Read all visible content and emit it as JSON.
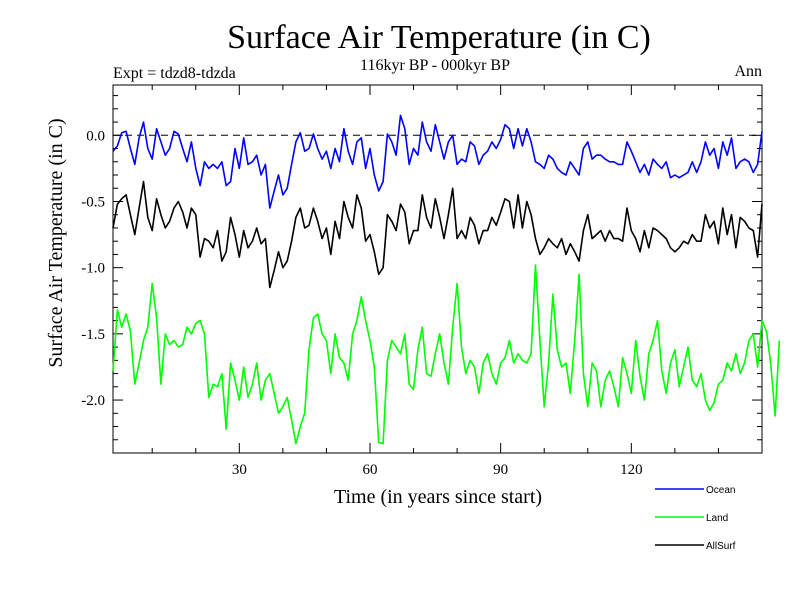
{
  "chart_data": {
    "type": "line",
    "title": "Surface Air Temperature (in C)",
    "subtitle": "116kyr BP - 000kyr BP",
    "left_note": "Expt = tdzd8-tdzda",
    "right_note": "Ann",
    "xlabel": "Time (in years since start)",
    "ylabel": "Surface Air Temperature (in C)",
    "xlim": [
      1,
      150
    ],
    "ylim": [
      -2.4,
      0.38
    ],
    "xticks": [
      30,
      60,
      90,
      120
    ],
    "xtick_labels": [
      "30",
      "60",
      "90",
      "120"
    ],
    "yticks": [
      0.0,
      -0.5,
      -1.0,
      -1.5,
      -2.0
    ],
    "ytick_labels": [
      "0.0",
      "-0.5",
      "-1.0",
      "-1.5",
      "-2.0"
    ],
    "reference_line": 0.0,
    "series": [
      {
        "name": "Ocean",
        "color": "#0000ff",
        "values": [
          -0.12,
          -0.08,
          0.02,
          0.03,
          -0.1,
          -0.22,
          -0.02,
          0.1,
          -0.1,
          -0.18,
          0.05,
          -0.05,
          -0.15,
          -0.1,
          0.03,
          0.01,
          -0.1,
          -0.2,
          -0.05,
          -0.25,
          -0.38,
          -0.2,
          -0.25,
          -0.22,
          -0.25,
          -0.2,
          -0.38,
          -0.35,
          -0.1,
          -0.25,
          -0.02,
          -0.22,
          -0.2,
          -0.15,
          -0.3,
          -0.22,
          -0.55,
          -0.42,
          -0.3,
          -0.45,
          -0.4,
          -0.22,
          -0.05,
          0.02,
          -0.12,
          -0.1,
          0.01,
          -0.1,
          -0.18,
          -0.12,
          -0.25,
          -0.1,
          -0.2,
          0.05,
          -0.12,
          -0.22,
          -0.05,
          -0.02,
          -0.25,
          -0.1,
          -0.3,
          -0.42,
          -0.35,
          0.01,
          -0.05,
          -0.15,
          0.15,
          0.05,
          -0.22,
          -0.1,
          -0.15,
          0.1,
          -0.05,
          -0.12,
          0.08,
          -0.05,
          -0.18,
          -0.05,
          0.0,
          -0.22,
          -0.18,
          -0.2,
          -0.05,
          -0.08,
          -0.22,
          -0.15,
          -0.12,
          -0.05,
          -0.1,
          -0.03,
          0.08,
          0.05,
          -0.1,
          0.05,
          -0.08,
          0.05,
          -0.05,
          -0.2,
          -0.22,
          -0.25,
          -0.15,
          -0.18,
          -0.25,
          -0.28,
          -0.3,
          -0.2,
          -0.25,
          -0.3,
          -0.1,
          -0.05,
          -0.18,
          -0.15,
          -0.15,
          -0.18,
          -0.2,
          -0.2,
          -0.22,
          -0.22,
          -0.05,
          -0.12,
          -0.2,
          -0.28,
          -0.22,
          -0.3,
          -0.18,
          -0.22,
          -0.25,
          -0.2,
          -0.32,
          -0.3,
          -0.32,
          -0.3,
          -0.28,
          -0.2,
          -0.28,
          -0.2,
          -0.05,
          -0.15,
          -0.1,
          -0.25,
          -0.05,
          -0.15,
          -0.02,
          -0.25,
          -0.2,
          -0.18,
          -0.2,
          -0.28,
          -0.22,
          0.03
        ]
      },
      {
        "name": "Land",
        "color": "#00ff00",
        "values": [
          -1.78,
          -1.32,
          -1.45,
          -1.35,
          -1.48,
          -1.88,
          -1.72,
          -1.55,
          -1.45,
          -1.12,
          -1.38,
          -1.88,
          -1.5,
          -1.58,
          -1.55,
          -1.6,
          -1.58,
          -1.45,
          -1.5,
          -1.42,
          -1.4,
          -1.5,
          -1.98,
          -1.88,
          -1.9,
          -1.8,
          -2.22,
          -1.72,
          -1.85,
          -2.0,
          -1.75,
          -1.98,
          -1.88,
          -1.72,
          -2.0,
          -1.85,
          -1.8,
          -1.95,
          -2.1,
          -2.05,
          -1.98,
          -2.15,
          -2.33,
          -2.2,
          -2.1,
          -1.62,
          -1.38,
          -1.35,
          -1.5,
          -1.55,
          -1.8,
          -1.5,
          -1.68,
          -1.72,
          -1.85,
          -1.5,
          -1.4,
          -1.22,
          -1.4,
          -1.55,
          -1.75,
          -2.32,
          -2.33,
          -1.7,
          -1.55,
          -1.6,
          -1.65,
          -1.5,
          -1.88,
          -1.92,
          -1.62,
          -1.45,
          -1.8,
          -1.82,
          -1.65,
          -1.5,
          -1.72,
          -1.88,
          -1.45,
          -1.12,
          -1.6,
          -1.8,
          -1.7,
          -1.75,
          -1.95,
          -1.72,
          -1.65,
          -1.8,
          -1.88,
          -1.72,
          -1.68,
          -1.55,
          -1.72,
          -1.65,
          -1.7,
          -1.72,
          -1.65,
          -0.98,
          -1.55,
          -2.05,
          -1.72,
          -1.2,
          -1.62,
          -1.75,
          -1.72,
          -1.95,
          -1.55,
          -1.05,
          -1.8,
          -2.05,
          -1.72,
          -1.78,
          -2.05,
          -1.85,
          -1.78,
          -1.9,
          -2.05,
          -1.68,
          -1.8,
          -1.95,
          -1.55,
          -1.82,
          -2.0,
          -1.65,
          -1.55,
          -1.4,
          -1.78,
          -1.95,
          -1.72,
          -1.62,
          -1.9,
          -1.75,
          -1.6,
          -1.85,
          -1.9,
          -1.8,
          -2.0,
          -2.08,
          -2.02,
          -1.88,
          -1.85,
          -1.72,
          -1.78,
          -1.65,
          -1.8,
          -1.72,
          -1.55,
          -1.5,
          -1.75,
          -1.4,
          -1.48,
          -1.72,
          -2.12,
          -1.55
        ]
      },
      {
        "name": "AllSurf",
        "color": "#000000",
        "values": [
          -0.7,
          -0.52,
          -0.48,
          -0.45,
          -0.6,
          -0.75,
          -0.55,
          -0.35,
          -0.62,
          -0.72,
          -0.48,
          -0.6,
          -0.7,
          -0.65,
          -0.55,
          -0.5,
          -0.58,
          -0.7,
          -0.55,
          -0.6,
          -0.92,
          -0.78,
          -0.8,
          -0.85,
          -0.72,
          -0.95,
          -0.88,
          -0.62,
          -0.75,
          -0.92,
          -0.72,
          -0.85,
          -0.8,
          -0.7,
          -0.82,
          -0.78,
          -1.15,
          -1.02,
          -0.88,
          -1.0,
          -0.95,
          -0.8,
          -0.62,
          -0.55,
          -0.7,
          -0.68,
          -0.55,
          -0.65,
          -0.78,
          -0.7,
          -0.9,
          -0.65,
          -0.78,
          -0.5,
          -0.62,
          -0.7,
          -0.45,
          -0.55,
          -0.8,
          -0.75,
          -0.88,
          -1.05,
          -1.0,
          -0.6,
          -0.65,
          -0.72,
          -0.52,
          -0.58,
          -0.82,
          -0.72,
          -0.72,
          -0.45,
          -0.62,
          -0.7,
          -0.48,
          -0.62,
          -0.78,
          -0.6,
          -0.4,
          -0.78,
          -0.72,
          -0.78,
          -0.62,
          -0.68,
          -0.82,
          -0.72,
          -0.72,
          -0.62,
          -0.68,
          -0.58,
          -0.48,
          -0.5,
          -0.7,
          -0.45,
          -0.7,
          -0.5,
          -0.6,
          -0.78,
          -0.9,
          -0.85,
          -0.78,
          -0.82,
          -0.85,
          -0.78,
          -0.9,
          -0.82,
          -0.88,
          -0.95,
          -0.72,
          -0.6,
          -0.78,
          -0.75,
          -0.72,
          -0.8,
          -0.72,
          -0.78,
          -0.78,
          -0.8,
          -0.55,
          -0.72,
          -0.78,
          -0.88,
          -0.72,
          -0.85,
          -0.7,
          -0.72,
          -0.75,
          -0.78,
          -0.85,
          -0.88,
          -0.85,
          -0.8,
          -0.82,
          -0.75,
          -0.8,
          -0.8,
          -0.6,
          -0.7,
          -0.65,
          -0.82,
          -0.55,
          -0.75,
          -0.6,
          -0.85,
          -0.62,
          -0.65,
          -0.7,
          -0.72,
          -0.92,
          -0.52
        ]
      }
    ]
  }
}
